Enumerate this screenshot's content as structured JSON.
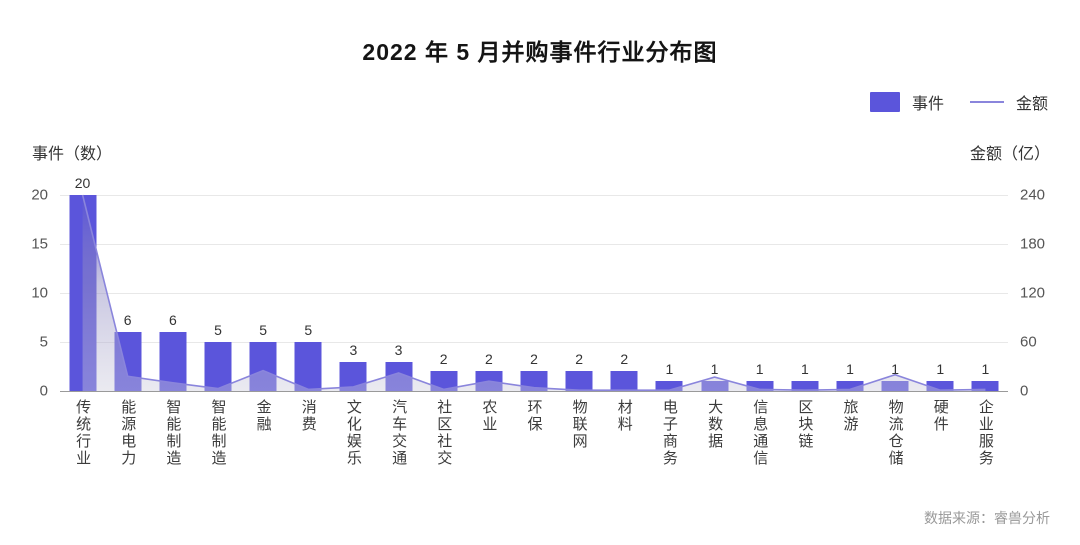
{
  "page": {
    "title": "2022 年 5 月并购事件行业分布图",
    "source_note": "数据来源：睿兽分析"
  },
  "legend": {
    "events_label": "事件",
    "amount_label": "金额"
  },
  "axes": {
    "left_title": "事件（数）",
    "right_title": "金额（亿）",
    "left_ticks": [
      0,
      5,
      10,
      15,
      20
    ],
    "right_ticks": [
      0,
      60,
      120,
      180,
      240
    ]
  },
  "colors": {
    "bar": "#5b55db",
    "line": "#8a85dc",
    "area_top": "#5a54d6",
    "area_mid": "#928dc4",
    "area_bottom": "#cbcadb",
    "grid": "#e8e8e8",
    "baseline": "#9a9a9a"
  },
  "chart_data": {
    "type": "bar",
    "title": "2022 年 5 月并购事件行业分布图",
    "categories": [
      "传统行业",
      "能源电力",
      "智能制造",
      "智能制造",
      "金融",
      "消费",
      "文化娱乐",
      "汽车交通",
      "社区社交",
      "农业",
      "环保",
      "物联网",
      "材料",
      "电子商务",
      "大数据",
      "信息通信",
      "区块链",
      "旅游",
      "物流仓储",
      "硬件",
      "企业服务"
    ],
    "series": [
      {
        "name": "事件",
        "type": "bar",
        "axis": "left",
        "values": [
          20,
          6,
          6,
          5,
          5,
          5,
          3,
          3,
          2,
          2,
          2,
          2,
          2,
          1,
          1,
          1,
          1,
          1,
          1,
          1,
          1
        ]
      },
      {
        "name": "金额",
        "type": "area-line",
        "axis": "right",
        "values": [
          240,
          18,
          10,
          3,
          25,
          2,
          5,
          22,
          2,
          12,
          4,
          1,
          1,
          1,
          17,
          2,
          1,
          2,
          20,
          1,
          2
        ]
      }
    ],
    "left_axis": {
      "label": "事件（数）",
      "range": [
        0,
        20
      ]
    },
    "right_axis": {
      "label": "金额（亿）",
      "range": [
        0,
        240
      ]
    },
    "grid": true,
    "legend_position": "top-right",
    "value_labels": "above bars (event counts)"
  }
}
